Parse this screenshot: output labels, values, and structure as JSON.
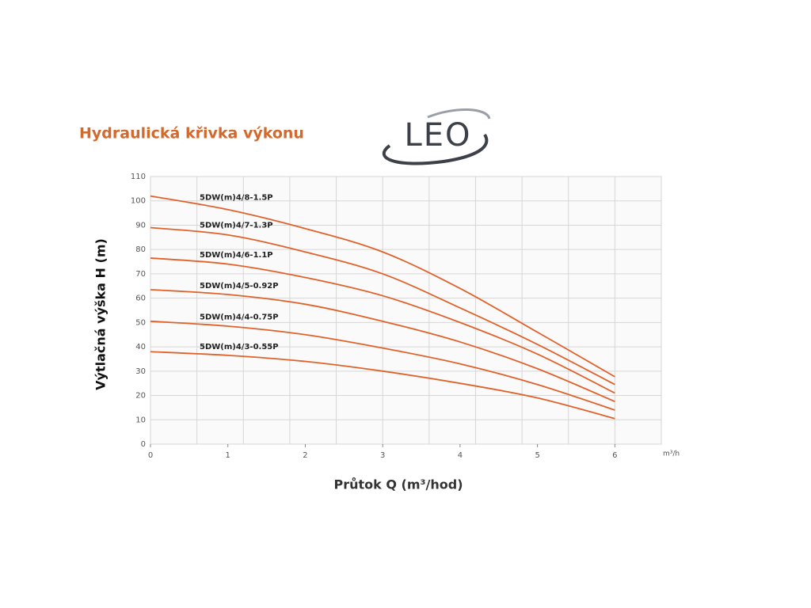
{
  "logo": {
    "text": "LEO"
  },
  "chart_data": {
    "type": "line",
    "title": "Hydraulická křivka výkonu",
    "x_label": "Průtok Q (m³/hod)",
    "y_label": "Výtlačná výška H (m)",
    "x_unit": "m³/h",
    "x": [
      0,
      1,
      2,
      3,
      4,
      5,
      6
    ],
    "xlim": [
      0,
      6.6
    ],
    "ylim": [
      0,
      110
    ],
    "xticks": [
      0,
      1,
      2,
      3,
      4,
      5,
      6
    ],
    "yticks": [
      0,
      10,
      20,
      30,
      40,
      50,
      60,
      70,
      80,
      90,
      100,
      110
    ],
    "xgrid": [
      0,
      0.6,
      1.2,
      1.8,
      2.4,
      3,
      3.6,
      4.2,
      4.8,
      5.4,
      6,
      6.6
    ],
    "grid": true,
    "series": [
      {
        "name": "5DW(m)4/8-1.5P",
        "color": "#e0622a",
        "values": [
          102,
          96.4,
          88.6,
          79,
          64,
          46,
          27.7
        ]
      },
      {
        "name": "5DW(m)4/7-1.3P",
        "color": "#e0622a",
        "values": [
          89,
          86,
          79,
          70,
          56,
          41,
          24.5
        ]
      },
      {
        "name": "5DW(m)4/6-1.1P",
        "color": "#e0622a",
        "values": [
          76.5,
          74,
          68.5,
          61,
          50,
          37,
          21
        ]
      },
      {
        "name": "5DW(m)4/5-0.92P",
        "color": "#e0622a",
        "values": [
          63.5,
          61.5,
          57.5,
          50.5,
          42,
          31,
          17.5
        ]
      },
      {
        "name": "5DW(m)4/4-0.75P",
        "color": "#e0622a",
        "values": [
          50.5,
          48.5,
          45,
          39.5,
          33,
          24.5,
          14
        ]
      },
      {
        "name": "5DW(m)4/3-0.55P",
        "color": "#e0622a",
        "values": [
          38,
          36.5,
          34,
          30,
          25,
          19,
          10.5
        ]
      }
    ]
  }
}
